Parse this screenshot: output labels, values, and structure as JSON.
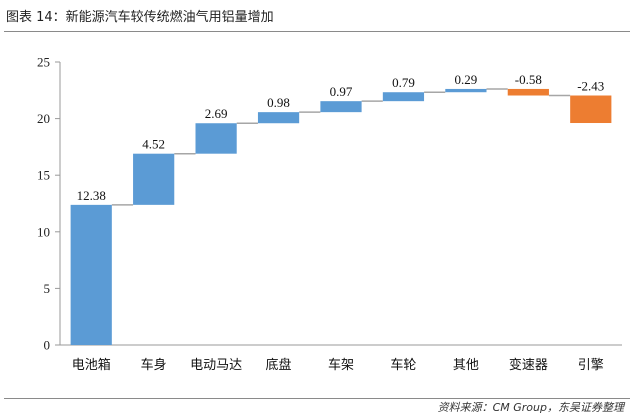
{
  "header": {
    "title": "图表 14：新能源汽车较传统燃油气用铝量增加"
  },
  "footer": {
    "source": "资料来源：CM Group，东吴证券整理"
  },
  "colors": {
    "increase": "#5b9bd5",
    "decrease": "#ed7d31",
    "connector": "#a6a6a6",
    "axis": "#999999"
  },
  "chart_data": {
    "type": "bar",
    "subtype": "waterfall",
    "title": "",
    "xlabel": "",
    "ylabel": "",
    "ylim": [
      0,
      25
    ],
    "yticks": [
      0,
      5,
      10,
      15,
      20,
      25
    ],
    "grid": false,
    "legend": "none",
    "categories": [
      "电池箱",
      "车身",
      "电动马达",
      "底盘",
      "车架",
      "车轮",
      "其他",
      "变速器",
      "引擎"
    ],
    "values": [
      12.38,
      4.52,
      2.69,
      0.98,
      0.97,
      0.79,
      0.29,
      -0.58,
      -2.43
    ],
    "data_labels": [
      "12.38",
      "4.52",
      "2.69",
      "0.98",
      "0.97",
      "0.79",
      "0.29",
      "-0.58",
      "-2.43"
    ]
  }
}
